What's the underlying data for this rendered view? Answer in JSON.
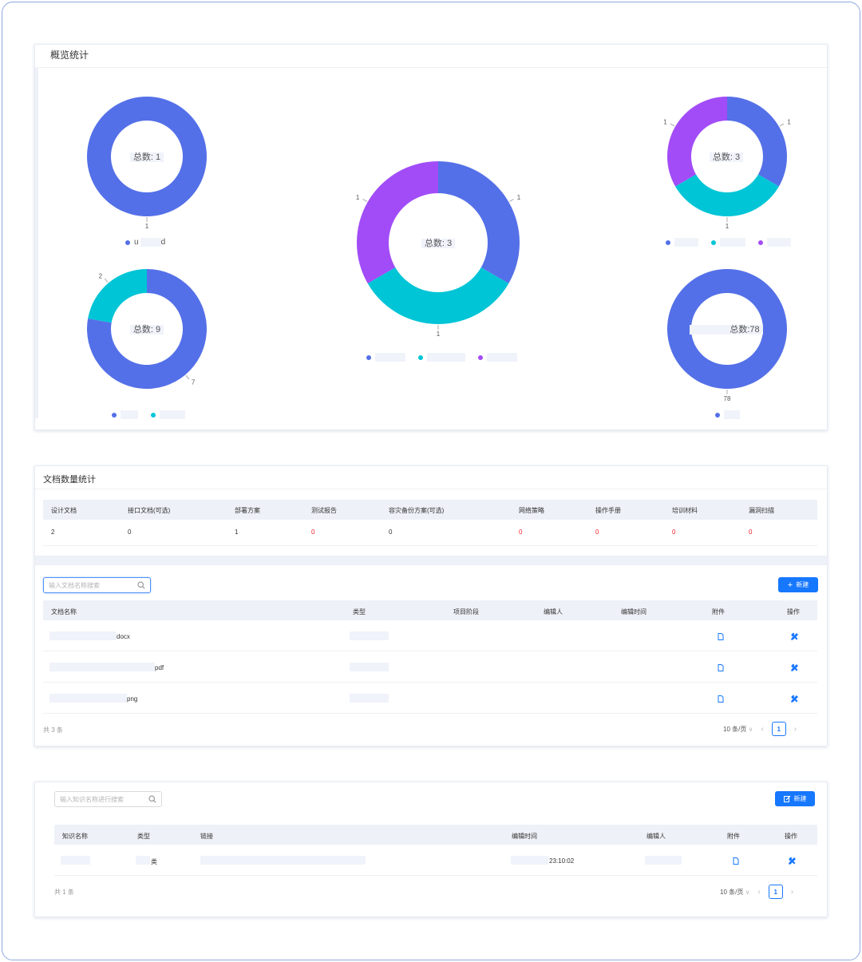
{
  "overview": {
    "title": "概览统计",
    "charts": [
      {
        "id": "tl",
        "center_label": "总数: 1",
        "slices": [
          {
            "value": 1,
            "color": "#5470e8",
            "label": "1"
          }
        ],
        "legend": [
          {
            "color": "#5470e8",
            "text_prefix": "u",
            "text_suffix": "d"
          }
        ]
      },
      {
        "id": "bl",
        "center_label": "总数: 9",
        "slices": [
          {
            "value": 7,
            "color": "#5470e8",
            "label": "7"
          },
          {
            "value": 2,
            "color": "#00c5d6",
            "label": "2"
          }
        ],
        "legend": [
          {
            "color": "#5470e8"
          },
          {
            "color": "#00c5d6"
          }
        ]
      },
      {
        "id": "mid",
        "center_label": "总数: 3",
        "slices": [
          {
            "value": 1,
            "color": "#5470e8",
            "label": "1"
          },
          {
            "value": 1,
            "color": "#00c5d6",
            "label": "1"
          },
          {
            "value": 1,
            "color": "#a24cf7",
            "label": "1"
          }
        ],
        "legend": [
          {
            "color": "#5470e8"
          },
          {
            "color": "#00c5d6"
          },
          {
            "color": "#a24cf7"
          }
        ]
      },
      {
        "id": "tr",
        "center_label": "总数: 3",
        "slices": [
          {
            "value": 1,
            "color": "#5470e8",
            "label": "1"
          },
          {
            "value": 1,
            "color": "#00c5d6",
            "label": "1"
          },
          {
            "value": 1,
            "color": "#a24cf7",
            "label": "1"
          }
        ],
        "legend": [
          {
            "color": "#5470e8"
          },
          {
            "color": "#00c5d6"
          },
          {
            "color": "#a24cf7"
          }
        ]
      },
      {
        "id": "br",
        "center_label": "总数:78",
        "slices": [
          {
            "value": 78,
            "color": "#5470e8",
            "label": "78"
          }
        ],
        "legend": [
          {
            "color": "#5470e8"
          }
        ]
      }
    ]
  },
  "doc_stats": {
    "title": "文档数量统计",
    "headers": [
      "设计文档",
      "接口文档(可选)",
      "部署方案",
      "测试报告",
      "容灾备份方案(可选)",
      "网络策略",
      "操作手册",
      "培训材料",
      "漏洞扫描"
    ],
    "values": [
      "2",
      "0",
      "1",
      "0",
      "0",
      "0",
      "0",
      "0",
      "0"
    ],
    "red": [
      false,
      false,
      false,
      true,
      false,
      true,
      true,
      true,
      true
    ]
  },
  "doc_list": {
    "search_placeholder": "输入文档名称搜索",
    "new_label": "新建",
    "headers": [
      "文档名称",
      "类型",
      "项目阶段",
      "编辑人",
      "编辑时间",
      "附件",
      "操作"
    ],
    "rows": [
      {
        "name_suffix": "docx"
      },
      {
        "name_suffix": "pdf"
      },
      {
        "name_suffix": "png"
      }
    ],
    "total": "共 3 条",
    "page_size": "10 条/页",
    "page": "1"
  },
  "knowledge_list": {
    "search_placeholder": "输入知识名称进行搜索",
    "new_label": "新建",
    "headers": [
      "知识名称",
      "类型",
      "链接",
      "编辑时间",
      "编辑人",
      "附件",
      "操作"
    ],
    "rows": [
      {
        "type_suffix": "类",
        "time_suffix": "23:10:02"
      }
    ],
    "total": "共 1 条",
    "page_size": "10 条/页",
    "page": "1"
  },
  "colors": {
    "blue": "#5470e8",
    "cyan": "#00c5d6",
    "purple": "#a24cf7",
    "primary": "#1677ff",
    "danger": "#f5222d"
  }
}
